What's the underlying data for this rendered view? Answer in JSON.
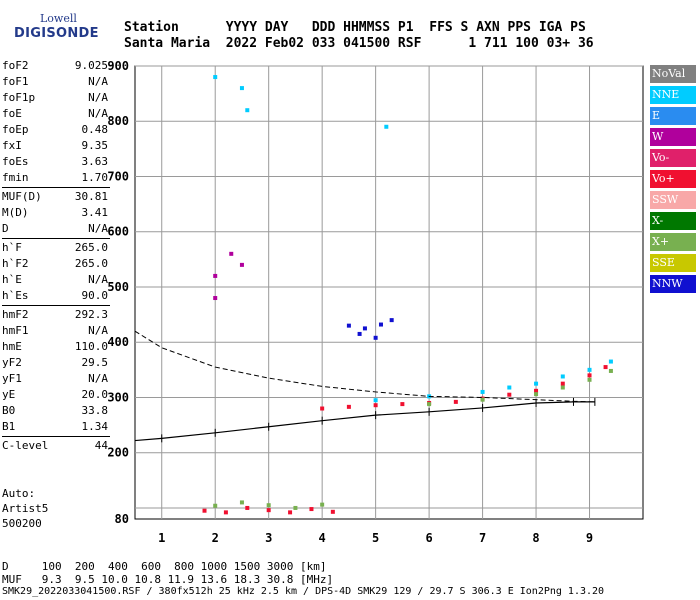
{
  "logo": {
    "line1": "Lowell",
    "line2": "DIGISONDE"
  },
  "header": {
    "line1": "Station      YYYY DAY   DDD HHMMSS P1  FFS S AXN PPS IGA PS",
    "line2": "Santa Maria  2022 Feb02 033 041500 RSF      1 711 100 03+ 36"
  },
  "params": [
    [
      {
        "name": "foF2",
        "value": "9.025"
      },
      {
        "name": "foF1",
        "value": "N/A"
      },
      {
        "name": "foF1p",
        "value": "N/A"
      },
      {
        "name": "foE",
        "value": "N/A"
      },
      {
        "name": "foEp",
        "value": "0.48"
      },
      {
        "name": "fxI",
        "value": "9.35"
      },
      {
        "name": "foEs",
        "value": "3.63"
      },
      {
        "name": "fmin",
        "value": "1.70"
      }
    ],
    [
      {
        "name": "MUF(D)",
        "value": "30.81"
      },
      {
        "name": "M(D)",
        "value": "3.41"
      },
      {
        "name": "D",
        "value": "N/A"
      }
    ],
    [
      {
        "name": "h`F",
        "value": "265.0"
      },
      {
        "name": "h`F2",
        "value": "265.0"
      },
      {
        "name": "h`E",
        "value": "N/A"
      },
      {
        "name": "h`Es",
        "value": "90.0"
      }
    ],
    [
      {
        "name": "hmF2",
        "value": "292.3"
      },
      {
        "name": "hmF1",
        "value": "N/A"
      },
      {
        "name": "hmE",
        "value": "110.0"
      },
      {
        "name": "yF2",
        "value": "29.5"
      },
      {
        "name": "yF1",
        "value": "N/A"
      },
      {
        "name": "yE",
        "value": "20.0"
      },
      {
        "name": "B0",
        "value": "33.8"
      },
      {
        "name": "B1",
        "value": "1.34"
      }
    ],
    [
      {
        "name": "C-level",
        "value": "44"
      }
    ]
  ],
  "auto": {
    "line1": "Auto:",
    "line2": "Artist5",
    "line3": "500200"
  },
  "legend": [
    {
      "label": "NoVal",
      "color": "#808080"
    },
    {
      "label": "NNE",
      "color": "#00ccff"
    },
    {
      "label": "E",
      "color": "#2a8cf0"
    },
    {
      "label": "W",
      "color": "#b0009c"
    },
    {
      "label": "Vo-",
      "color": "#e0206a"
    },
    {
      "label": "Vo+",
      "color": "#f01030"
    },
    {
      "label": "SSW",
      "color": "#f8a8a8"
    },
    {
      "label": "X-",
      "color": "#007800"
    },
    {
      "label": "X+",
      "color": "#78b050"
    },
    {
      "label": "SSE",
      "color": "#c8c800"
    },
    {
      "label": "NNW",
      "color": "#1010d0"
    }
  ],
  "footer": {
    "line1": "D     100  200  400  600  800 1000 1500 3000 [km]",
    "line2": "MUF   9.3  9.5 10.0 10.8 11.9 13.6 18.3 30.8 [MHz]",
    "line3": "SMK29_2022033041500.RSF / 380fx512h 25 kHz 2.5 km / DPS-4D SMK29 129 / 29.7 S 306.3 E Ion2Png 1.3.20"
  },
  "chart_data": {
    "type": "scatter",
    "xlim": [
      0.5,
      10.0
    ],
    "ylim": [
      80,
      900
    ],
    "x_ticks": [
      1,
      2,
      3,
      4,
      5,
      6,
      7,
      8,
      9
    ],
    "y_ticks": [
      100,
      200,
      300,
      400,
      500,
      600,
      700,
      800,
      900
    ],
    "y_tick_labels": [
      "",
      "200",
      "300",
      "400",
      "500",
      "600",
      "700",
      "800",
      "900"
    ],
    "bottom_label": "80",
    "grid": true,
    "profile_line": {
      "x": [
        0.5,
        1,
        2,
        3,
        4,
        5,
        6,
        7,
        8,
        8.7,
        9.1
      ],
      "y": [
        222,
        226,
        236,
        247,
        258,
        268,
        274,
        281,
        290,
        292,
        292
      ]
    },
    "dashed_line": {
      "x": [
        0.5,
        1,
        2,
        3,
        4,
        5,
        6,
        7,
        8,
        8.7,
        9.1
      ],
      "y": [
        420,
        390,
        355,
        335,
        320,
        310,
        302,
        300,
        296,
        293,
        292
      ]
    },
    "series": [
      {
        "color": "#f01030",
        "points": [
          [
            4,
            280
          ],
          [
            4.5,
            283
          ],
          [
            5,
            286
          ],
          [
            5.5,
            288
          ],
          [
            6,
            290
          ],
          [
            6.5,
            292
          ],
          [
            7,
            298
          ],
          [
            7.5,
            305
          ],
          [
            8,
            312
          ],
          [
            8.5,
            325
          ],
          [
            9,
            340
          ],
          [
            9.3,
            355
          ]
        ]
      },
      {
        "color": "#00ccff",
        "points": [
          [
            5,
            295
          ],
          [
            6,
            302
          ],
          [
            7,
            310
          ],
          [
            7.5,
            318
          ],
          [
            8,
            325
          ],
          [
            8.5,
            338
          ],
          [
            9,
            350
          ],
          [
            9.4,
            365
          ]
        ]
      },
      {
        "color": "#78b050",
        "points": [
          [
            6,
            288
          ],
          [
            7,
            296
          ],
          [
            8,
            306
          ],
          [
            8.5,
            318
          ],
          [
            9,
            332
          ],
          [
            9.4,
            348
          ]
        ]
      },
      {
        "color": "#1010d0",
        "points": [
          [
            4.5,
            430
          ],
          [
            4.8,
            425
          ],
          [
            5.1,
            432
          ],
          [
            5.3,
            440
          ],
          [
            4.7,
            415
          ],
          [
            5.0,
            408
          ]
        ]
      },
      {
        "color": "#f01030",
        "points": [
          [
            1.8,
            95
          ],
          [
            2.2,
            92
          ],
          [
            2.6,
            100
          ],
          [
            3.0,
            96
          ],
          [
            3.4,
            92
          ],
          [
            3.8,
            98
          ],
          [
            4.2,
            93
          ]
        ]
      },
      {
        "color": "#78b050",
        "points": [
          [
            2.0,
            104
          ],
          [
            2.5,
            110
          ],
          [
            3.0,
            105
          ],
          [
            3.5,
            100
          ],
          [
            4.0,
            106
          ]
        ]
      },
      {
        "color": "#b0009c",
        "points": [
          [
            2.0,
            520
          ],
          [
            2.0,
            480
          ],
          [
            2.3,
            560
          ],
          [
            2.5,
            540
          ]
        ]
      },
      {
        "color": "#00ccff",
        "points": [
          [
            2.0,
            880
          ],
          [
            2.5,
            860
          ],
          [
            2.6,
            820
          ],
          [
            5.2,
            790
          ]
        ]
      }
    ]
  }
}
